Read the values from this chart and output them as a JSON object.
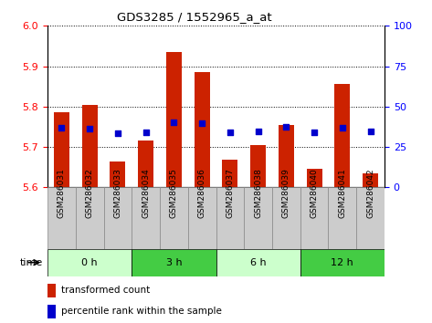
{
  "title": "GDS3285 / 1552965_a_at",
  "samples": [
    "GSM286031",
    "GSM286032",
    "GSM286033",
    "GSM286034",
    "GSM286035",
    "GSM286036",
    "GSM286037",
    "GSM286038",
    "GSM286039",
    "GSM286040",
    "GSM286041",
    "GSM286042"
  ],
  "bar_values": [
    5.785,
    5.805,
    5.665,
    5.715,
    5.935,
    5.885,
    5.668,
    5.705,
    5.755,
    5.645,
    5.855,
    5.635
  ],
  "blue_dot_values": [
    5.748,
    5.745,
    5.735,
    5.737,
    5.762,
    5.758,
    5.736,
    5.738,
    5.75,
    5.736,
    5.748,
    5.738
  ],
  "ymin": 5.6,
  "ymax": 6.0,
  "yticks": [
    5.6,
    5.7,
    5.8,
    5.9,
    6.0
  ],
  "right_yticks": [
    0,
    25,
    50,
    75,
    100
  ],
  "bar_color": "#cc2200",
  "dot_color": "#0000cc",
  "bar_bottom": 5.6,
  "time_groups": [
    {
      "label": "0 h",
      "start": 0,
      "end": 3,
      "color": "#ccffcc"
    },
    {
      "label": "3 h",
      "start": 3,
      "end": 6,
      "color": "#44cc44"
    },
    {
      "label": "6 h",
      "start": 6,
      "end": 9,
      "color": "#ccffcc"
    },
    {
      "label": "12 h",
      "start": 9,
      "end": 12,
      "color": "#44cc44"
    }
  ],
  "legend_items": [
    {
      "label": "transformed count",
      "color": "#cc2200"
    },
    {
      "label": "percentile rank within the sample",
      "color": "#0000cc"
    }
  ],
  "grid_color": "black",
  "background_color": "white",
  "bar_width": 0.55,
  "sample_box_color": "#cccccc",
  "sample_box_edge": "#888888"
}
